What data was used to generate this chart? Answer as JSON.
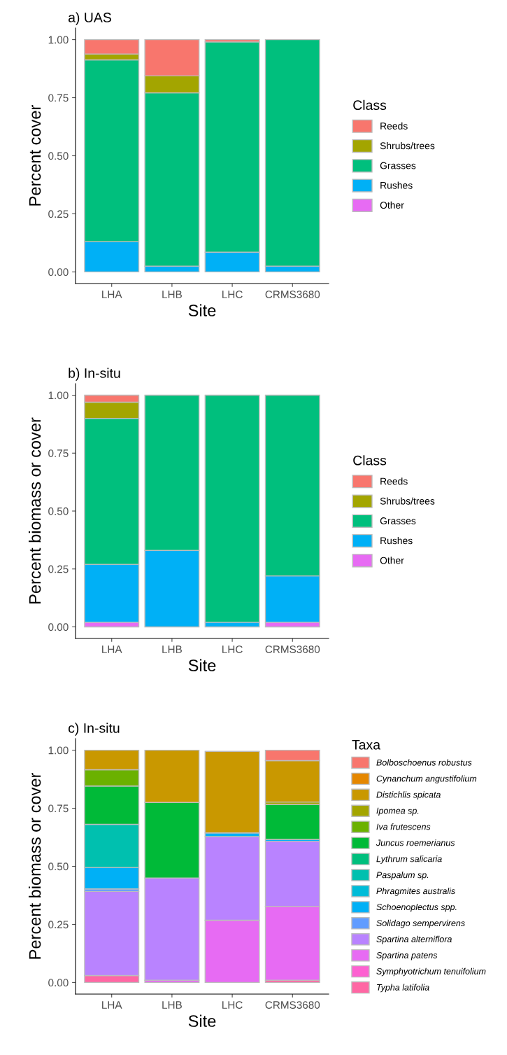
{
  "chart_data": [
    {
      "type": "bar",
      "stacked": true,
      "title": "a) UAS",
      "xlabel": "Site",
      "ylabel": "Percent cover",
      "legend_title": "Class",
      "legend": "right",
      "grid": false,
      "categories": [
        "LHA",
        "LHB",
        "LHC",
        "CRMS3680"
      ],
      "ylim": [
        -0.05,
        1.05
      ],
      "yticks": [
        {
          "value": 0,
          "label": "0.00"
        },
        {
          "value": 0.25,
          "label": "0.25"
        },
        {
          "value": 0.5,
          "label": "0.50"
        },
        {
          "value": 0.75,
          "label": "0.75"
        },
        {
          "value": 1,
          "label": "1.00"
        }
      ],
      "series": [
        {
          "name": "Other",
          "color": "#e76bf3",
          "values": [
            0,
            0,
            0,
            0
          ]
        },
        {
          "name": "Rushes",
          "color": "#00b0f6",
          "values": [
            0.13,
            0.025,
            0.085,
            0.025
          ]
        },
        {
          "name": "Grasses",
          "color": "#00bf7d",
          "values": [
            0.783,
            0.746,
            0.905,
            0.975
          ]
        },
        {
          "name": "Shrubs/trees",
          "color": "#a3a500",
          "values": [
            0.025,
            0.073,
            0,
            0
          ]
        },
        {
          "name": "Reeds",
          "color": "#f8766d",
          "values": [
            0.062,
            0.156,
            0.01,
            0
          ]
        }
      ]
    },
    {
      "type": "bar",
      "stacked": true,
      "title": "b) In-situ",
      "xlabel": "Site",
      "ylabel": "Percent biomass or cover",
      "legend_title": "Class",
      "legend": "right",
      "grid": false,
      "categories": [
        "LHA",
        "LHB",
        "LHC",
        "CRMS3680"
      ],
      "ylim": [
        -0.05,
        1.05
      ],
      "yticks": [
        {
          "value": 0,
          "label": "0.00"
        },
        {
          "value": 0.25,
          "label": "0.25"
        },
        {
          "value": 0.5,
          "label": "0.50"
        },
        {
          "value": 0.75,
          "label": "0.75"
        },
        {
          "value": 1,
          "label": "1.00"
        }
      ],
      "series": [
        {
          "name": "Other",
          "color": "#e76bf3",
          "values": [
            0.02,
            0,
            0,
            0.02
          ]
        },
        {
          "name": "Rushes",
          "color": "#00b0f6",
          "values": [
            0.25,
            0.33,
            0.02,
            0.2
          ]
        },
        {
          "name": "Grasses",
          "color": "#00bf7d",
          "values": [
            0.63,
            0.67,
            0.98,
            0.78
          ]
        },
        {
          "name": "Shrubs/trees",
          "color": "#a3a500",
          "values": [
            0.07,
            0,
            0,
            0
          ]
        },
        {
          "name": "Reeds",
          "color": "#f8766d",
          "values": [
            0.03,
            0,
            0,
            0
          ]
        }
      ]
    },
    {
      "type": "bar",
      "stacked": true,
      "title": "c) In-situ",
      "xlabel": "Site",
      "ylabel": "Percent biomass or cover",
      "legend_title": "Taxa",
      "legend": "right",
      "grid": false,
      "categories": [
        "LHA",
        "LHB",
        "LHC",
        "CRMS3680"
      ],
      "ylim": [
        -0.05,
        1.05
      ],
      "yticks": [
        {
          "value": 0,
          "label": "0.00"
        },
        {
          "value": 0.25,
          "label": "0.25"
        },
        {
          "value": 0.5,
          "label": "0.50"
        },
        {
          "value": 0.75,
          "label": "0.75"
        },
        {
          "value": 1,
          "label": "1.00"
        }
      ],
      "series": [
        {
          "name": "Typha latifolia",
          "color": "#ff67a4",
          "values": [
            0.03,
            0,
            0,
            0.01
          ]
        },
        {
          "name": "Symphyotrichum tenuifolium",
          "color": "#fd61d1",
          "values": [
            0,
            0,
            0,
            0
          ]
        },
        {
          "name": "Spartina patens",
          "color": "#e76bf3",
          "values": [
            0,
            0.01,
            0.268,
            0.318
          ]
        },
        {
          "name": "Spartina alterniflora",
          "color": "#b983ff",
          "values": [
            0.362,
            0.44,
            0.36,
            0.28
          ]
        },
        {
          "name": "Solidago sempervirens",
          "color": "#619cff",
          "values": [
            0.011,
            0,
            0,
            0
          ]
        },
        {
          "name": "Schoenoplectus spp.",
          "color": "#00b0f6",
          "values": [
            0.092,
            0,
            0.016,
            0.008
          ]
        },
        {
          "name": "Phragmites australis",
          "color": "#00bcd8",
          "values": [
            0,
            0,
            0,
            0
          ]
        },
        {
          "name": "Paspalum sp.",
          "color": "#00c0af",
          "values": [
            0.186,
            0,
            0,
            0
          ]
        },
        {
          "name": "Lythrum salicaria",
          "color": "#00bf7d",
          "values": [
            0,
            0,
            0,
            0
          ]
        },
        {
          "name": "Juncus roemerianus",
          "color": "#00ba38",
          "values": [
            0.165,
            0.325,
            0,
            0.15
          ]
        },
        {
          "name": "Iva frutescens",
          "color": "#6bb100",
          "values": [
            0.07,
            0,
            0,
            0
          ]
        },
        {
          "name": "Ipomea sp.",
          "color": "#a3a500",
          "values": [
            0,
            0,
            0,
            0.011
          ]
        },
        {
          "name": "Distichlis spicata",
          "color": "#c99800",
          "values": [
            0.084,
            0.225,
            0.351,
            0.178
          ]
        },
        {
          "name": "Cynanchum angustifolium",
          "color": "#e58700",
          "values": [
            0,
            0,
            0,
            0
          ]
        },
        {
          "name": "Bolboschoenus robustus",
          "color": "#f8766d",
          "values": [
            0,
            0,
            0,
            0.045
          ]
        }
      ]
    }
  ]
}
